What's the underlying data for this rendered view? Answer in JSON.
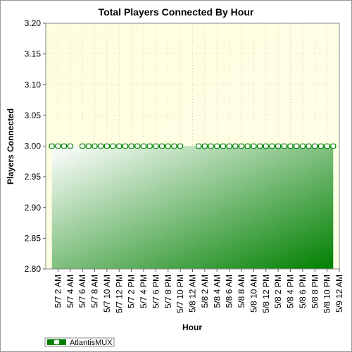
{
  "chart_data": {
    "type": "area",
    "title": "Total Players Connected By Hour",
    "xlabel": "Hour",
    "ylabel": "Players Connected",
    "ylim": [
      2.8,
      3.2
    ],
    "yticks": [
      "2.80",
      "2.85",
      "2.90",
      "2.95",
      "3.00",
      "3.05",
      "3.10",
      "3.15",
      "3.20"
    ],
    "grid": true,
    "legend_position": "bottom-left",
    "x_tick_labels": [
      "5/7 2 AM",
      "5/7 4 AM",
      "5/7 6 AM",
      "5/7 8 AM",
      "5/7 10 AM",
      "5/7 12 PM",
      "5/7 2 PM",
      "5/7 4 PM",
      "5/7 6 PM",
      "5/7 8 PM",
      "5/7 10 PM",
      "5/8 12 AM",
      "5/8 2 AM",
      "5/8 4 AM",
      "5/8 6 AM",
      "5/8 8 AM",
      "5/8 10 AM",
      "5/8 12 PM",
      "5/8 2 PM",
      "5/8 4 PM",
      "5/8 6 PM",
      "5/8 8 PM",
      "5/8 10 PM",
      "5/9 12 AM"
    ],
    "series": [
      {
        "name": "AtlantisMUX",
        "color": "#008000",
        "hours": [
          1,
          2,
          3,
          4,
          6,
          7,
          8,
          9,
          10,
          11,
          12,
          13,
          14,
          15,
          16,
          17,
          18,
          19,
          20,
          21,
          22,
          25,
          26,
          27,
          28,
          29,
          30,
          31,
          32,
          33,
          34,
          35,
          36,
          37,
          38,
          39,
          40,
          41,
          42,
          43,
          44,
          45,
          46,
          47
        ],
        "values": [
          3,
          3,
          3,
          3,
          3,
          3,
          3,
          3,
          3,
          3,
          3,
          3,
          3,
          3,
          3,
          3,
          3,
          3,
          3,
          3,
          3,
          3,
          3,
          3,
          3,
          3,
          3,
          3,
          3,
          3,
          3,
          3,
          3,
          3,
          3,
          3,
          3,
          3,
          3,
          3,
          3,
          3,
          3,
          3
        ]
      }
    ]
  }
}
